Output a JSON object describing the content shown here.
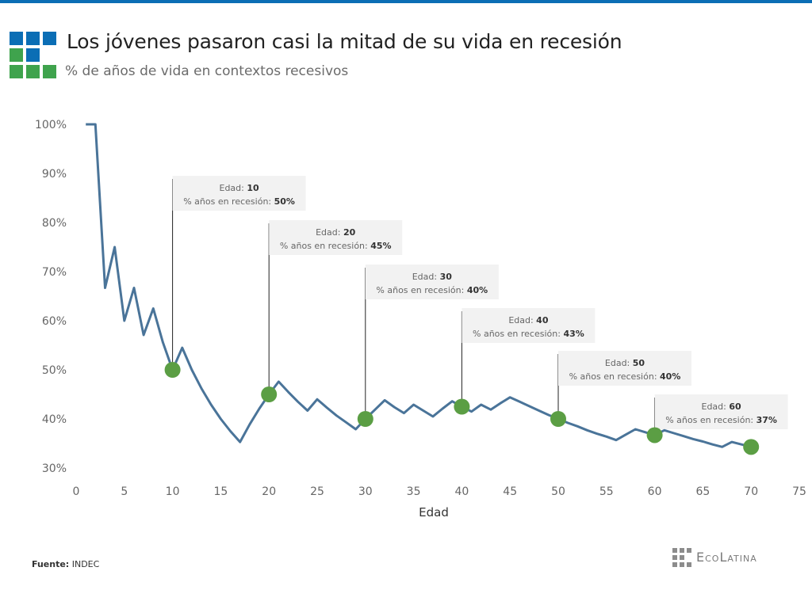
{
  "header": {
    "title": "Los jóvenes pasaron casi la mitad de su vida en recesión",
    "subtitle": "% de años de vida en contextos recesivos"
  },
  "footer": {
    "source_label": "Fuente:",
    "source_value": "INDEC",
    "brand_name": "EcoLatina"
  },
  "colors": {
    "line": "#4a7499",
    "marker": "#5b9e44",
    "top_bar": "#0b6eb5",
    "logo_blue": "#0b6eb5",
    "logo_green": "#3fa34d"
  },
  "chart_data": {
    "type": "line",
    "title": "Los jóvenes pasaron casi la mitad de su vida en recesión",
    "subtitle": "% de años de vida en contextos recesivos",
    "xlabel": "Edad",
    "ylabel": "",
    "xlim": [
      0,
      75
    ],
    "ylim": [
      30,
      100
    ],
    "x_ticks": [
      0,
      5,
      10,
      15,
      20,
      25,
      30,
      35,
      40,
      45,
      50,
      55,
      60,
      65,
      70,
      75
    ],
    "y_ticks": [
      30,
      40,
      50,
      60,
      70,
      80,
      90,
      100
    ],
    "y_tick_labels": [
      "30%",
      "40%",
      "50%",
      "60%",
      "70%",
      "80%",
      "90%",
      "100%"
    ],
    "grid": false,
    "series": [
      {
        "x": [
          1,
          2,
          3,
          4,
          5,
          6,
          7,
          8,
          9,
          10,
          11,
          12,
          13,
          14,
          15,
          16,
          17,
          18,
          19,
          20,
          21,
          22,
          23,
          24,
          25,
          26,
          27,
          28,
          29,
          30,
          31,
          32,
          33,
          34,
          35,
          36,
          37,
          38,
          39,
          40,
          41,
          42,
          43,
          44,
          45,
          46,
          47,
          48,
          49,
          50,
          51,
          52,
          53,
          54,
          55,
          56,
          57,
          58,
          59,
          60,
          61,
          62,
          63,
          64,
          65,
          66,
          67,
          68,
          69,
          70
        ],
        "y": [
          100,
          100,
          66.7,
          75,
          60,
          66.7,
          57.1,
          62.5,
          55.6,
          50,
          54.5,
          50,
          46.2,
          42.9,
          40,
          37.5,
          35.3,
          38.9,
          42.1,
          45,
          47.6,
          45.5,
          43.5,
          41.7,
          44,
          42.3,
          40.7,
          39.3,
          37.9,
          40,
          41.9,
          43.8,
          42.4,
          41.2,
          42.9,
          41.7,
          40.5,
          42.1,
          43.6,
          42.5,
          41.5,
          42.9,
          41.9,
          43.2,
          44.4,
          43.5,
          42.6,
          41.7,
          40.8,
          40,
          39.2,
          38.5,
          37.7,
          37,
          36.4,
          35.7,
          36.8,
          37.9,
          37.3,
          36.7,
          37.7,
          37.1,
          36.5,
          35.9,
          35.4,
          34.8,
          34.3,
          35.3,
          34.8,
          34.3
        ]
      }
    ],
    "highlight_points": [
      {
        "x": 10,
        "y": 50,
        "age_label": "Edad:",
        "age_value": "10",
        "pct_label": "% años en recesión:",
        "pct_value": "50%"
      },
      {
        "x": 20,
        "y": 45,
        "age_label": "Edad:",
        "age_value": "20",
        "pct_label": "% años en recesión:",
        "pct_value": "45%"
      },
      {
        "x": 30,
        "y": 40,
        "age_label": "Edad:",
        "age_value": "30",
        "pct_label": "% años en recesión:",
        "pct_value": "40%"
      },
      {
        "x": 40,
        "y": 42.5,
        "age_label": "Edad:",
        "age_value": "40",
        "pct_label": "% años en recesión:",
        "pct_value": "43%"
      },
      {
        "x": 50,
        "y": 40,
        "age_label": "Edad:",
        "age_value": "50",
        "pct_label": "% años en recesión:",
        "pct_value": "40%"
      },
      {
        "x": 60,
        "y": 36.7,
        "age_label": "Edad:",
        "age_value": "60",
        "pct_label": "% años en recesión:",
        "pct_value": "37%"
      },
      {
        "x": 70,
        "y": 34.3,
        "age_label": "Edad:",
        "age_value": "",
        "pct_label": "",
        "pct_value": ""
      }
    ]
  }
}
